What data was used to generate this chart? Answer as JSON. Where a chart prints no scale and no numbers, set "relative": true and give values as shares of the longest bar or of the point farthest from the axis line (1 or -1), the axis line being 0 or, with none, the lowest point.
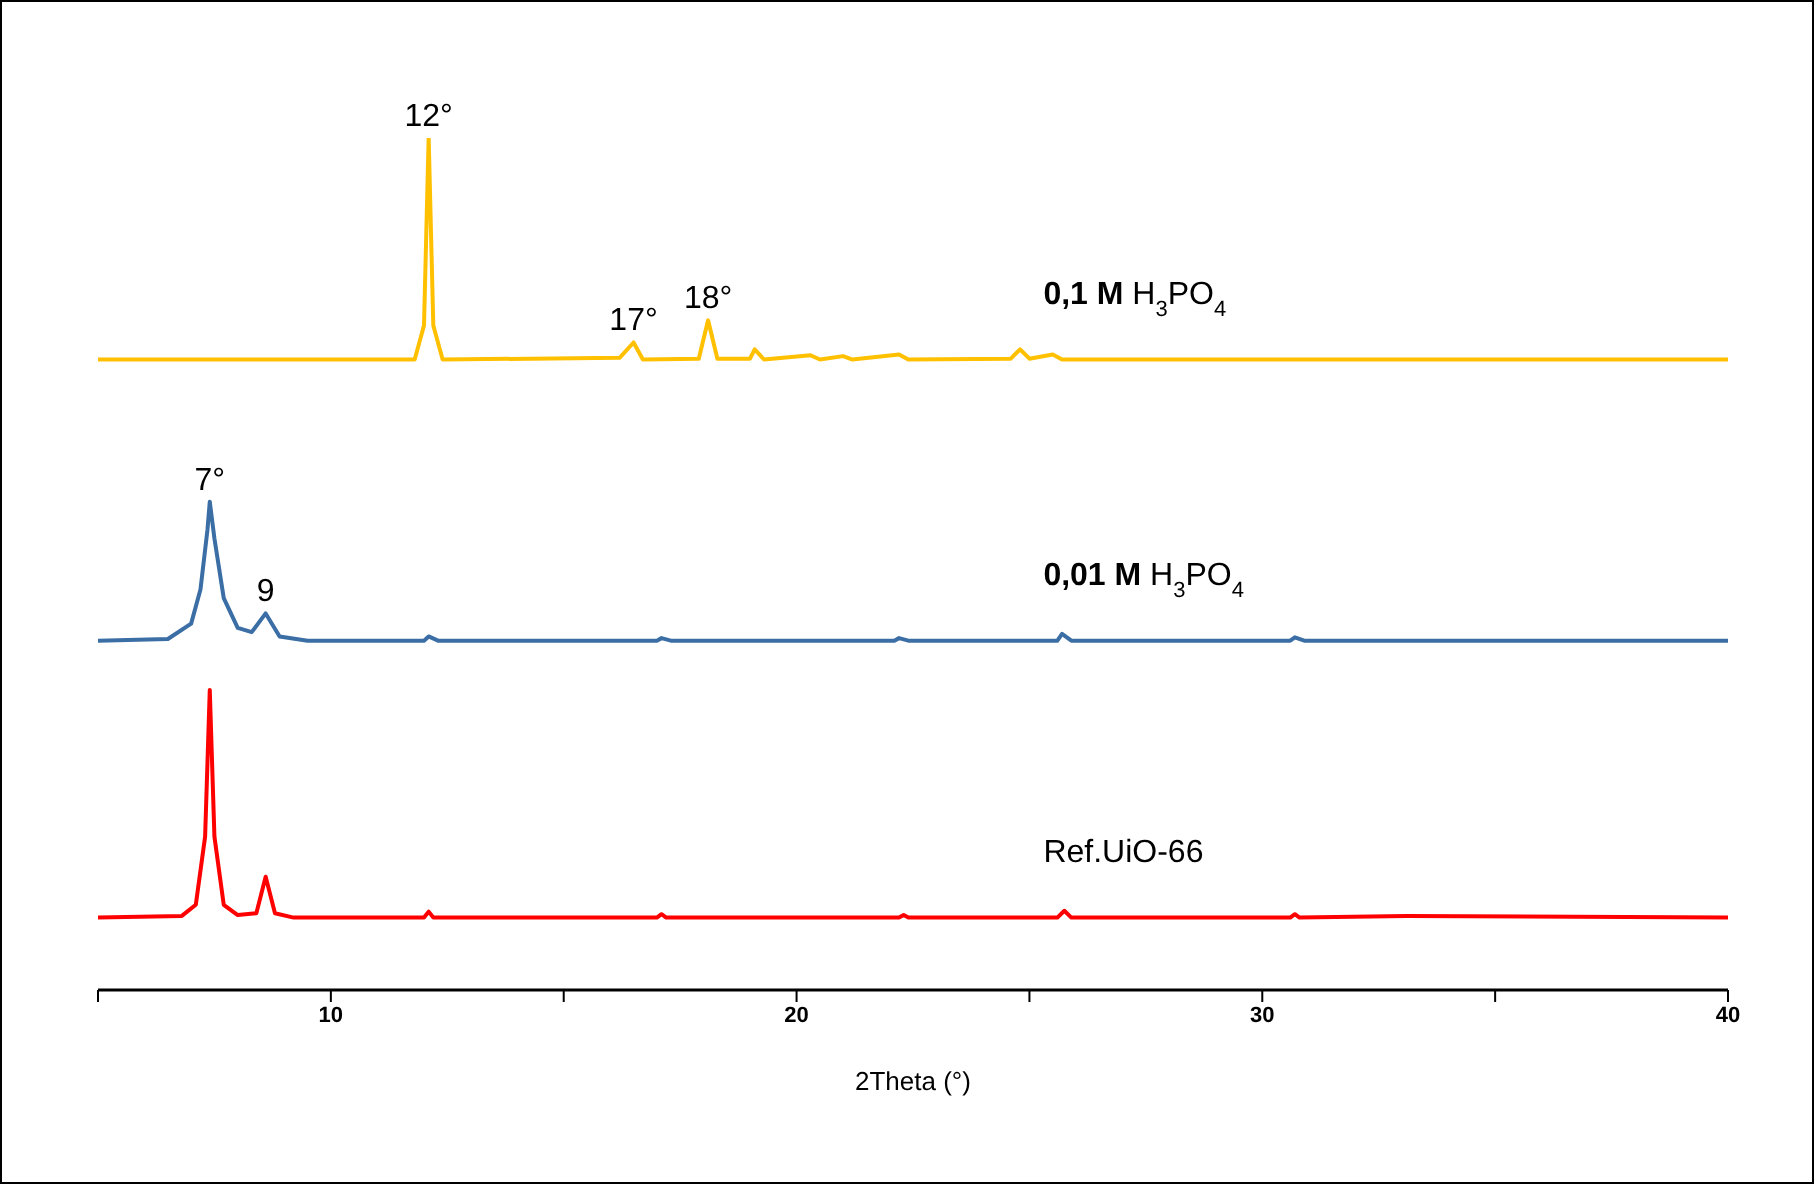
{
  "chart_data": {
    "type": "line",
    "relative": true,
    "xlabel": "2Theta (°)",
    "xlim": [
      5,
      40
    ],
    "xticks": [
      {
        "value": 5,
        "label": null
      },
      10,
      {
        "value": 15,
        "label": null
      },
      20,
      {
        "value": 25,
        "label": null
      },
      30,
      {
        "value": 35,
        "label": null
      },
      40
    ],
    "series": [
      {
        "name": "0,1 M H$_{3}$PO$_{4}$",
        "color": "#ffc000",
        "x": [
          5,
          11.8,
          12.0,
          12.1,
          12.2,
          12.4,
          16.2,
          16.5,
          16.7,
          17.9,
          18.1,
          18.3,
          19.0,
          19.1,
          19.3,
          20.3,
          20.5,
          21.0,
          21.2,
          22.2,
          22.4,
          24.6,
          24.8,
          25.0,
          25.5,
          25.7,
          40
        ],
        "values": [
          0.74,
          0.74,
          0.78,
          1.0,
          0.78,
          0.74,
          0.742,
          0.76,
          0.74,
          0.741,
          0.786,
          0.741,
          0.741,
          0.752,
          0.74,
          0.745,
          0.74,
          0.744,
          0.74,
          0.746,
          0.74,
          0.741,
          0.752,
          0.741,
          0.746,
          0.74,
          0.74
        ]
      },
      {
        "name": "0,01 M H$_{3}$PO$_{4}$",
        "color": "#3a6ea5",
        "x": [
          5,
          6.5,
          7.0,
          7.2,
          7.35,
          7.4,
          7.5,
          7.7,
          8.0,
          8.3,
          8.6,
          8.9,
          9.5,
          12.0,
          12.1,
          12.3,
          17.0,
          17.1,
          17.3,
          22.1,
          22.2,
          22.4,
          25.6,
          25.7,
          25.9,
          30.6,
          30.7,
          30.9,
          40
        ],
        "values": [
          0.41,
          0.412,
          0.43,
          0.47,
          0.54,
          0.573,
          0.53,
          0.46,
          0.425,
          0.42,
          0.442,
          0.415,
          0.41,
          0.41,
          0.415,
          0.41,
          0.41,
          0.413,
          0.41,
          0.41,
          0.413,
          0.41,
          0.41,
          0.418,
          0.41,
          0.41,
          0.414,
          0.41,
          0.41
        ]
      },
      {
        "name": "Ref.UiO-66",
        "color": "#ff0000",
        "x": [
          5,
          6.8,
          7.1,
          7.3,
          7.4,
          7.5,
          7.7,
          8.0,
          8.4,
          8.6,
          8.8,
          9.2,
          12.0,
          12.1,
          12.2,
          17.0,
          17.1,
          17.2,
          22.2,
          22.3,
          22.4,
          25.6,
          25.75,
          25.9,
          30.6,
          30.7,
          30.8,
          33.1,
          40
        ],
        "values": [
          0.085,
          0.087,
          0.1,
          0.18,
          0.352,
          0.18,
          0.1,
          0.088,
          0.09,
          0.133,
          0.09,
          0.085,
          0.085,
          0.092,
          0.085,
          0.085,
          0.089,
          0.085,
          0.085,
          0.088,
          0.085,
          0.085,
          0.093,
          0.085,
          0.085,
          0.089,
          0.085,
          0.087,
          0.085
        ]
      }
    ],
    "annotations": [
      {
        "text": "12°",
        "x": 12.1,
        "y": 1.0
      },
      {
        "text": "17°",
        "x": 16.5,
        "y": 0.76
      },
      {
        "text": "18°",
        "x": 18.1,
        "y": 0.786
      },
      {
        "text": "7°",
        "x": 7.4,
        "y": 0.573
      },
      {
        "text": "9",
        "x": 8.6,
        "y": 0.442
      }
    ]
  }
}
